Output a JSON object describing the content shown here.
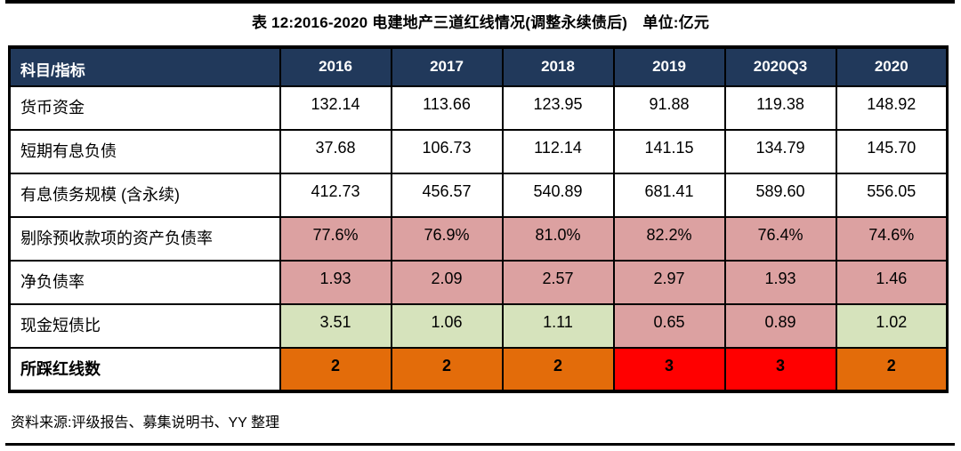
{
  "title": "表 12:2016-2020 电建地产三道红线情况(调整永续债后)　单位:亿元",
  "colors": {
    "header_bg": "#21395B",
    "pink": "#DCA1A1",
    "green": "#D6E3BC",
    "orange": "#E36C0A",
    "red": "#FF0000",
    "border": "#000000"
  },
  "table": {
    "header": [
      "科目/指标",
      "2016",
      "2017",
      "2018",
      "2019",
      "2020Q3",
      "2020"
    ],
    "rows": [
      {
        "label": "货币资金",
        "values": [
          "132.14",
          "113.66",
          "123.95",
          "91.88",
          "119.38",
          "148.92"
        ],
        "styles": [
          "white",
          "white",
          "white",
          "white",
          "white",
          "white"
        ],
        "bold": false
      },
      {
        "label": "短期有息负债",
        "values": [
          "37.68",
          "106.73",
          "112.14",
          "141.15",
          "134.79",
          "145.70"
        ],
        "styles": [
          "white",
          "white",
          "white",
          "white",
          "white",
          "white"
        ],
        "bold": false
      },
      {
        "label": "有息债务规模 (含永续)",
        "values": [
          "412.73",
          "456.57",
          "540.89",
          "681.41",
          "589.60",
          "556.05"
        ],
        "styles": [
          "white",
          "white",
          "white",
          "white",
          "white",
          "white"
        ],
        "bold": false
      },
      {
        "label": "剔除预收款项的资产负债率",
        "values": [
          "77.6%",
          "76.9%",
          "81.0%",
          "82.2%",
          "76.4%",
          "74.6%"
        ],
        "styles": [
          "pink",
          "pink",
          "pink",
          "pink",
          "pink",
          "pink"
        ],
        "bold": false
      },
      {
        "label": "净负债率",
        "values": [
          "1.93",
          "2.09",
          "2.57",
          "2.97",
          "1.93",
          "1.46"
        ],
        "styles": [
          "pink",
          "pink",
          "pink",
          "pink",
          "pink",
          "pink"
        ],
        "bold": false
      },
      {
        "label": "现金短债比",
        "values": [
          "3.51",
          "1.06",
          "1.11",
          "0.65",
          "0.89",
          "1.02"
        ],
        "styles": [
          "green",
          "green",
          "green",
          "pink",
          "pink",
          "green"
        ],
        "bold": false
      },
      {
        "label": "所踩红线数",
        "values": [
          "2",
          "2",
          "2",
          "3",
          "3",
          "2"
        ],
        "styles": [
          "orange",
          "orange",
          "orange",
          "red",
          "red",
          "orange"
        ],
        "bold": true
      }
    ]
  },
  "footer": {
    "source": "资料来源:评级报告、募集说明书、YY 整理"
  }
}
